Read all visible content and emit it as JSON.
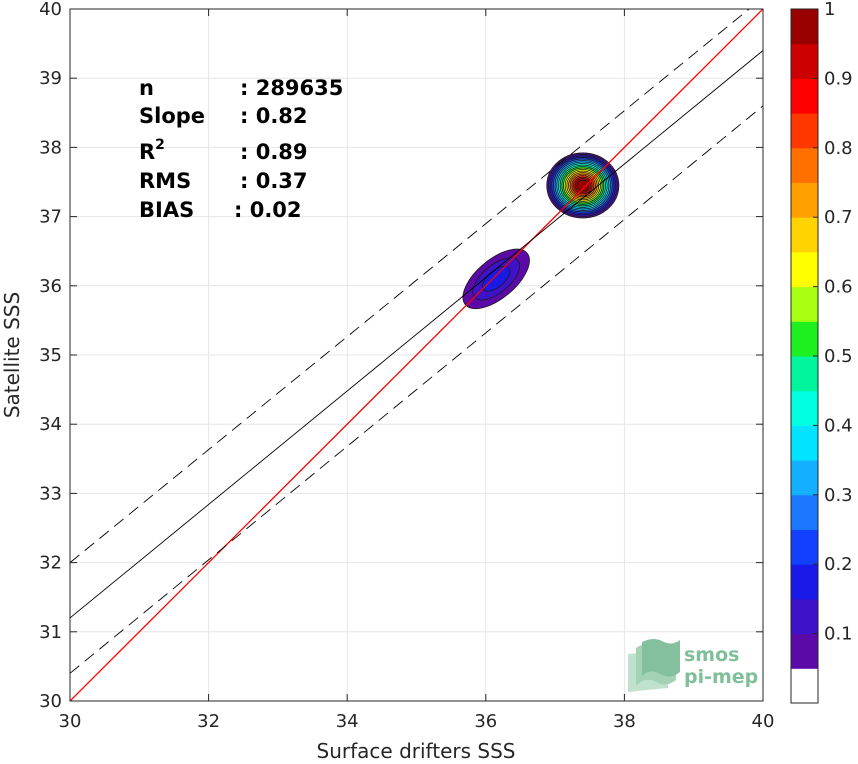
{
  "chart_data": {
    "type": "scatter",
    "subtype": "density-contour",
    "xlabel": "Surface drifters SSS",
    "ylabel": "Satellite SSS",
    "xlim": [
      30,
      40
    ],
    "ylim": [
      30,
      40
    ],
    "xticks": [
      30,
      32,
      34,
      36,
      38,
      40
    ],
    "yticks": [
      30,
      31,
      32,
      33,
      34,
      35,
      36,
      37,
      38,
      39,
      40
    ],
    "grid": true,
    "stats": [
      {
        "label": "n",
        "value": ": 289635"
      },
      {
        "label": "Slope",
        "value": ": 0.82"
      },
      {
        "label": "R",
        "sup": "2",
        "value": ": 0.89"
      },
      {
        "label": "RMS",
        "value": ": 0.37"
      },
      {
        "label": "BIAS",
        "value": ": 0.02"
      }
    ],
    "lines": [
      {
        "role": "1:1",
        "color": "#ff0000",
        "dash": "solid",
        "points": [
          [
            30,
            30
          ],
          [
            40,
            40
          ]
        ]
      },
      {
        "role": "regression",
        "color": "#000000",
        "dash": "solid",
        "points": [
          [
            30,
            31.2
          ],
          [
            40,
            39.4
          ]
        ]
      },
      {
        "role": "upper",
        "color": "#000000",
        "dash": "dashed",
        "points": [
          [
            30,
            32.0
          ],
          [
            39.8,
            40.0
          ]
        ]
      },
      {
        "role": "lower",
        "color": "#000000",
        "dash": "dashed",
        "points": [
          [
            30,
            30.4
          ],
          [
            40,
            38.6
          ]
        ]
      }
    ],
    "clusters": [
      {
        "x": 37.4,
        "y": 37.45,
        "rx": 0.52,
        "ry": 0.47,
        "peak": 1.0
      },
      {
        "x": 36.15,
        "y": 36.1,
        "rx": 0.58,
        "ry": 0.28,
        "angle": 40,
        "peak": 0.2
      }
    ],
    "colorbar": {
      "ticks": [
        0.1,
        0.2,
        0.3,
        0.4,
        0.5,
        0.6,
        0.7,
        0.8,
        0.9,
        1
      ],
      "tick_labels": [
        "0.1",
        "0.2",
        "0.3",
        "0.4",
        "0.5",
        "0.6",
        "0.7",
        "0.8",
        "0.9",
        "1"
      ],
      "range": [
        0,
        1
      ],
      "levels": [
        {
          "from": 0.0,
          "to": 0.05,
          "color": "#ffffff"
        },
        {
          "from": 0.05,
          "to": 0.1,
          "color": "#5b0aa8"
        },
        {
          "from": 0.1,
          "to": 0.15,
          "color": "#3e12c8"
        },
        {
          "from": 0.15,
          "to": 0.2,
          "color": "#1a1ae8"
        },
        {
          "from": 0.2,
          "to": 0.25,
          "color": "#1240ff"
        },
        {
          "from": 0.25,
          "to": 0.3,
          "color": "#1c78ff"
        },
        {
          "from": 0.3,
          "to": 0.35,
          "color": "#14b0ff"
        },
        {
          "from": 0.35,
          "to": 0.4,
          "color": "#00e4ff"
        },
        {
          "from": 0.4,
          "to": 0.45,
          "color": "#00ffe0"
        },
        {
          "from": 0.45,
          "to": 0.5,
          "color": "#00f59c"
        },
        {
          "from": 0.5,
          "to": 0.55,
          "color": "#1ef020"
        },
        {
          "from": 0.55,
          "to": 0.6,
          "color": "#a8ff10"
        },
        {
          "from": 0.6,
          "to": 0.65,
          "color": "#ffff00"
        },
        {
          "from": 0.65,
          "to": 0.7,
          "color": "#ffd200"
        },
        {
          "from": 0.7,
          "to": 0.75,
          "color": "#ffa000"
        },
        {
          "from": 0.75,
          "to": 0.8,
          "color": "#ff7000"
        },
        {
          "from": 0.8,
          "to": 0.85,
          "color": "#ff3800"
        },
        {
          "from": 0.85,
          "to": 0.9,
          "color": "#ff0000"
        },
        {
          "from": 0.9,
          "to": 0.95,
          "color": "#cc0000"
        },
        {
          "from": 0.95,
          "to": 1.0,
          "color": "#990000"
        }
      ]
    }
  },
  "logo": {
    "line1": "smos",
    "line2": "pi-mep",
    "color": "#7fbf9a"
  }
}
